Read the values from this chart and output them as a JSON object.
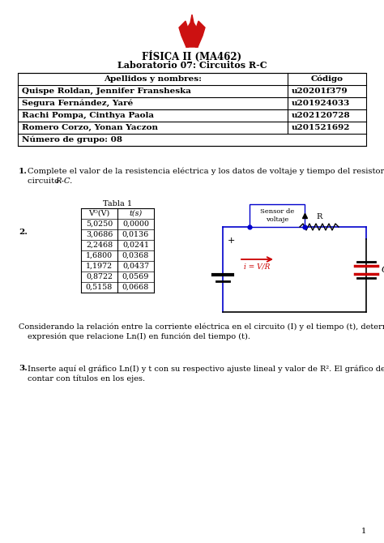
{
  "title_line1": "FÍSICA II (MA462)",
  "title_line2": "Laboratorio 07: Circuitos R-C",
  "table_header": [
    "Apellidos y nombres:",
    "Código"
  ],
  "table_rows": [
    [
      "Quispe Roldan, Jennifer Fransheska",
      "u20201f379"
    ],
    [
      "Segura Fernández, Yaré",
      "u201924033"
    ],
    [
      "Rachi Pompa, Cinthya Paola",
      "u202120728"
    ],
    [
      "Romero Corzo, Yonan Yaczon",
      "u201521692"
    ],
    [
      "Número de grupo: 08",
      ""
    ]
  ],
  "q1_text_line1": "Complete el valor de la resistencia eléctrica y los datos de voltaje y tiempo del resistor en el",
  "q1_text_line2": "circuito ",
  "q1_italic": "R-C.",
  "tabla1_title": "Tabla 1",
  "tabla1_header_col1": "Vᴼ(V)",
  "tabla1_header_col2": "t(s)",
  "tabla1_data": [
    [
      "5,0250",
      "0,0000"
    ],
    [
      "3,0686",
      "0,0136"
    ],
    [
      "2,2468",
      "0,0241"
    ],
    [
      "1,6800",
      "0,0368"
    ],
    [
      "1,1972",
      "0,0437"
    ],
    [
      "0,8722",
      "0,0569"
    ],
    [
      "0,5158",
      "0,0668"
    ]
  ],
  "q2_text_line1": "Considerando la relación entre la corriente eléctrica en el circuito (΢) y el tiempo (΢), determine una",
  "q2_text_line2": "expresión que relacione Ln(΢) en función del tiempo (΢).",
  "q2_text_line1_real": "Considerando la relación entre la corriente eléctrica en el circuito (I) y el tiempo (t), determine una",
  "q2_text_line2_real": "expresión que relacione Ln(I) en función del tiempo (t).",
  "q3_text_line1": "Inserte aquí el gráfico Ln(I) y t con su respectivo ajuste lineal y valor de R². El gráfico debe",
  "q3_text_line2": "contar con títulos en los ejes.",
  "page_num": "1",
  "bg_color": "#ffffff",
  "flame_color": "#cc1111",
  "blue_color": "#0000cc",
  "red_color": "#cc0000"
}
